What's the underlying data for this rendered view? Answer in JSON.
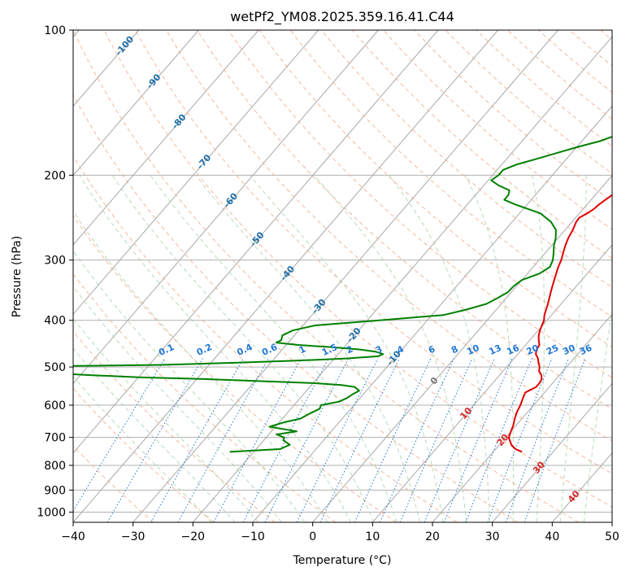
{
  "chart_data": {
    "type": "line",
    "title": "wetPf2_YM08.2025.359.16.41.C44",
    "xlabel": "Temperature (°C)",
    "ylabel": "Pressure (hPa)",
    "xlim": [
      -40,
      50
    ],
    "ylim": [
      1050,
      100
    ],
    "y_scale": "log",
    "grid": true,
    "x_ticks": [
      "−40",
      "−30",
      "−20",
      "−10",
      "0",
      "10",
      "20",
      "30",
      "40",
      "50"
    ],
    "y_ticks": [
      "1000",
      "900",
      "800",
      "700",
      "600",
      "500",
      "400",
      "300",
      "200",
      "100"
    ],
    "colors": {
      "temperature": "#e00000",
      "dewpoint": "#008000",
      "isotherm": "#a0a0a0",
      "dry_adiabat": "#f4a582",
      "moist_adiabat": "#99cc99",
      "mixing_ratio": "#1f77d4",
      "isotherm_label_cold": "#1f6fa8",
      "isotherm_label_warm": "#d62728"
    },
    "isotherm_labels": [
      {
        "text": "-100",
        "t": -100,
        "p": 108
      },
      {
        "text": "-90",
        "t": -90,
        "p": 128
      },
      {
        "text": "-80",
        "t": -80,
        "p": 155
      },
      {
        "text": "-70",
        "t": -70,
        "p": 188
      },
      {
        "text": "-60",
        "t": -60,
        "p": 226
      },
      {
        "text": "-50",
        "t": -50,
        "p": 272
      },
      {
        "text": "-40",
        "t": -40,
        "p": 320
      },
      {
        "text": "-30",
        "t": -30,
        "p": 375
      },
      {
        "text": "-20",
        "t": -20,
        "p": 430
      },
      {
        "text": "-10",
        "t": -10,
        "p": 480
      },
      {
        "text": "0",
        "t": 0,
        "p": 535
      },
      {
        "text": "10",
        "t": 10,
        "p": 625
      },
      {
        "text": "20",
        "t": 20,
        "p": 710
      },
      {
        "text": "30",
        "t": 30,
        "p": 810
      },
      {
        "text": "40",
        "t": 40,
        "p": 930
      }
    ],
    "mixing_ratio_labels": [
      "0.1",
      "0.2",
      "0.4",
      "0.6",
      "1",
      "1.5",
      "2",
      "3",
      "4",
      "6",
      "8",
      "10",
      "13",
      "16",
      "20",
      "25",
      "30",
      "36"
    ],
    "series": [
      {
        "p": [
          750,
          740,
          725,
          700,
          680,
          660,
          640,
          620,
          600,
          580,
          565,
          550,
          540,
          530,
          520,
          510,
          500,
          490,
          480,
          470,
          460,
          450,
          440,
          430,
          420,
          410,
          400,
          390,
          380,
          370,
          360,
          350,
          340,
          330,
          320,
          310,
          300,
          290,
          280,
          270,
          260,
          250,
          245,
          240,
          235,
          230,
          225,
          220,
          215,
          210,
          205,
          200,
          195,
          190,
          185,
          180,
          175,
          170,
          165,
          160,
          155,
          150,
          145,
          140,
          135,
          130,
          125,
          120,
          115,
          110,
          105,
          100
        ],
        "t": [
          24.8,
          23.3,
          22.0,
          20.5,
          20.0,
          19.5,
          18.8,
          18.2,
          17.8,
          17.2,
          16.8,
          17.8,
          17.8,
          17.6,
          17.0,
          16.0,
          15.5,
          14.7,
          14.0,
          13.0,
          12.5,
          12.3,
          11.5,
          10.8,
          10.3,
          9.9,
          9.5,
          8.8,
          8.3,
          7.8,
          7.2,
          6.6,
          6.0,
          5.4,
          4.8,
          4.2,
          3.7,
          3.0,
          2.3,
          1.7,
          1.3,
          0.7,
          0.6,
          1.3,
          1.8,
          2.0,
          2.4,
          2.8,
          3.1,
          3.3,
          3.4,
          3.6,
          3.9,
          4.1,
          4.2,
          4.3,
          4.4,
          4.6,
          4.8,
          5.0,
          5.2,
          5.6,
          6.0,
          6.2,
          6.3,
          6.2,
          6.0,
          5.8,
          5.5,
          5.3,
          5.4,
          5.7
        ]
      },
      {
        "p": [
          750,
          740,
          725,
          710,
          700,
          690,
          680,
          665,
          650,
          640,
          625,
          610,
          600,
          590,
          580,
          570,
          560,
          550,
          545,
          540,
          535,
          530,
          525,
          520,
          515,
          510,
          505,
          500,
          497,
          495,
          490,
          485,
          480,
          475,
          470,
          465,
          460,
          455,
          450,
          445,
          440,
          430,
          420,
          410,
          400,
          390,
          380,
          370,
          360,
          350,
          340,
          330,
          320,
          310,
          300,
          290,
          280,
          270,
          260,
          250,
          240,
          230,
          225,
          220,
          215,
          210,
          205,
          200,
          195,
          190,
          185,
          180,
          175,
          170,
          165,
          160,
          155,
          150,
          145,
          140,
          135,
          130,
          125,
          120,
          115,
          110,
          105,
          100
        ],
        "t": [
          -24.0,
          -16.0,
          -15.0,
          -16.7,
          -17.0,
          -18.7,
          -15.8,
          -21.0,
          -19.0,
          -17.0,
          -16.2,
          -15.2,
          -15.5,
          -13.0,
          -12.2,
          -11.8,
          -11.2,
          -12.5,
          -15.0,
          -20.0,
          -29.0,
          -38.0,
          -50.0,
          -58.0,
          -65.0,
          -70.0,
          -75.0,
          -80.0,
          -60.0,
          -48.0,
          -36.0,
          -26.0,
          -18.0,
          -13.0,
          -12.5,
          -14.0,
          -17.0,
          -22.0,
          -28.0,
          -32.0,
          -31.5,
          -32.0,
          -31.0,
          -28.0,
          -18.0,
          -8.0,
          -5.0,
          -2.5,
          -1.5,
          -0.6,
          -0.5,
          0.0,
          2.0,
          2.8,
          2.3,
          1.4,
          0.4,
          -0.4,
          -1.5,
          -3.5,
          -6.5,
          -12.0,
          -14.5,
          -14.5,
          -15.0,
          -17.5,
          -19.5,
          -19.0,
          -19.0,
          -17.5,
          -15.0,
          -12.5,
          -10.0,
          -7.0,
          -5.0,
          -4.0,
          -3.3,
          -3.3,
          -3.2,
          -3.0,
          -2.8,
          -2.7,
          -2.3,
          -1.8,
          -1.3,
          -0.8,
          -0.2,
          0.4
        ]
      }
    ]
  }
}
